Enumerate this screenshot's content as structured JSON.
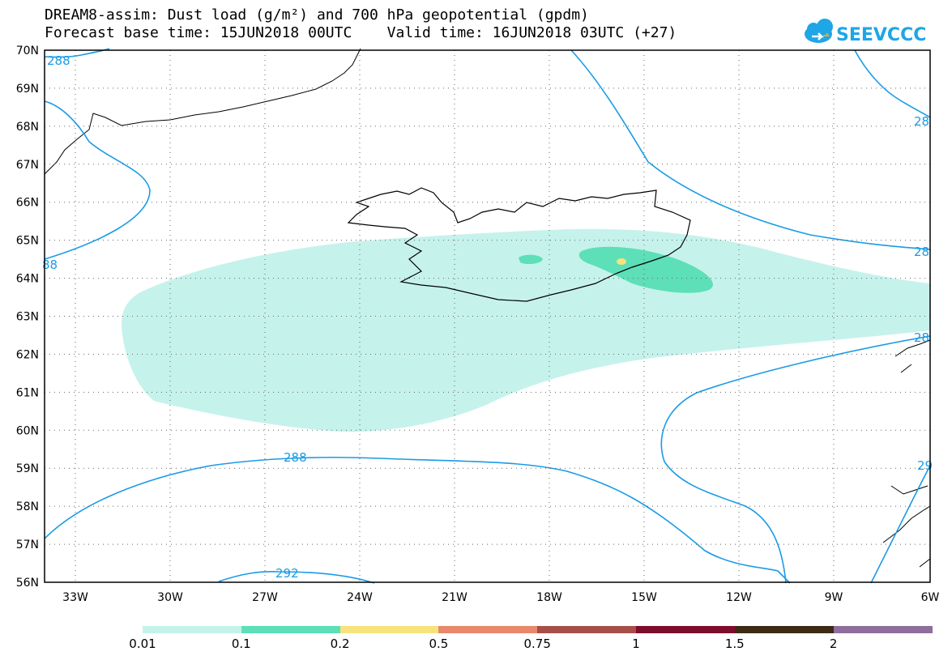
{
  "title": {
    "line1": "DREAM8-assim: Dust load (g/m²) and 700 hPa geopotential (gpdm)",
    "line2": "Forecast base time: 15JUN2018 00UTC    Valid time: 16JUN2018 03UTC (+27)"
  },
  "logo": {
    "text": "SEEVCCC",
    "color": "#1ea6e6"
  },
  "map": {
    "lat_labels": [
      "70N",
      "69N",
      "68N",
      "67N",
      "66N",
      "65N",
      "64N",
      "63N",
      "62N",
      "61N",
      "60N",
      "59N",
      "58N",
      "57N",
      "56N"
    ],
    "lon_labels": [
      "33W",
      "30W",
      "27W",
      "24W",
      "21W",
      "18W",
      "15W",
      "12W",
      "9W",
      "6W"
    ],
    "contour_color": "#1a9be6",
    "contour_labels": [
      "288",
      "88",
      "288",
      "292",
      "28",
      "28",
      "28",
      "29"
    ]
  },
  "colorbar": {
    "colors": [
      "#c6f2ec",
      "#5ddfb8",
      "#f7e37d",
      "#e8896b",
      "#a64f48",
      "#7d0d2b",
      "#3d2a14",
      "#8f6e9c"
    ],
    "labels": [
      "0.01",
      "0.1",
      "0.2",
      "0.5",
      "0.75",
      "1",
      "1.5",
      "2"
    ]
  }
}
